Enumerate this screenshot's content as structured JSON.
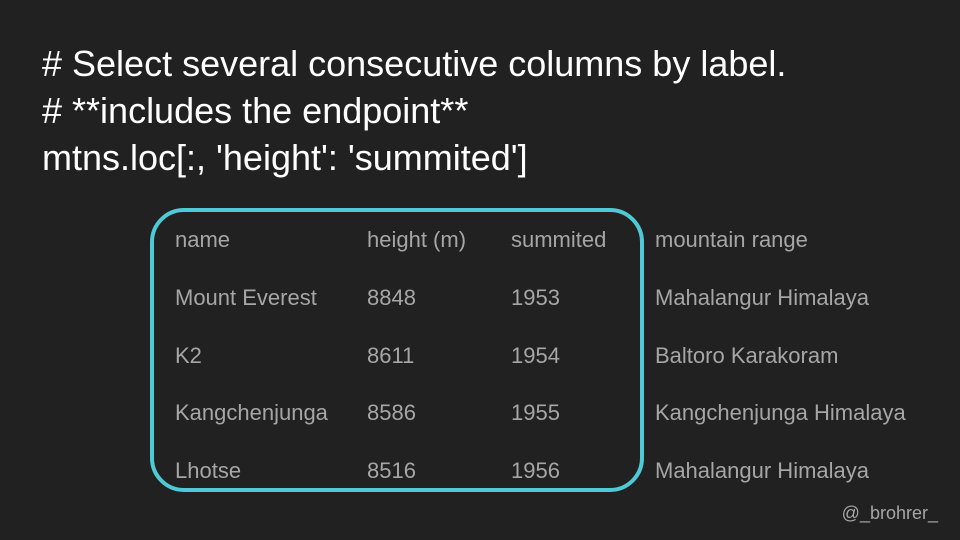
{
  "code": {
    "lines": [
      "# Select several consecutive columns by label.",
      "# **includes the endpoint**",
      "mtns.loc[:, 'height': 'summited']"
    ]
  },
  "highlight": {
    "color": "#4ec9d6"
  },
  "table": {
    "headers": [
      "name",
      "height (m)",
      "summited",
      "mountain range"
    ],
    "rows": [
      [
        "Mount Everest",
        "8848",
        "1953",
        "Mahalangur Himalaya"
      ],
      [
        "K2",
        "8611",
        "1954",
        "Baltoro Karakoram"
      ],
      [
        "Kangchenjunga",
        "8586",
        "1955",
        "Kangchenjunga Himalaya"
      ],
      [
        "Lhotse",
        "8516",
        "1956",
        "Mahalangur Himalaya"
      ]
    ]
  },
  "footer": {
    "credit": "@_brohrer_"
  }
}
